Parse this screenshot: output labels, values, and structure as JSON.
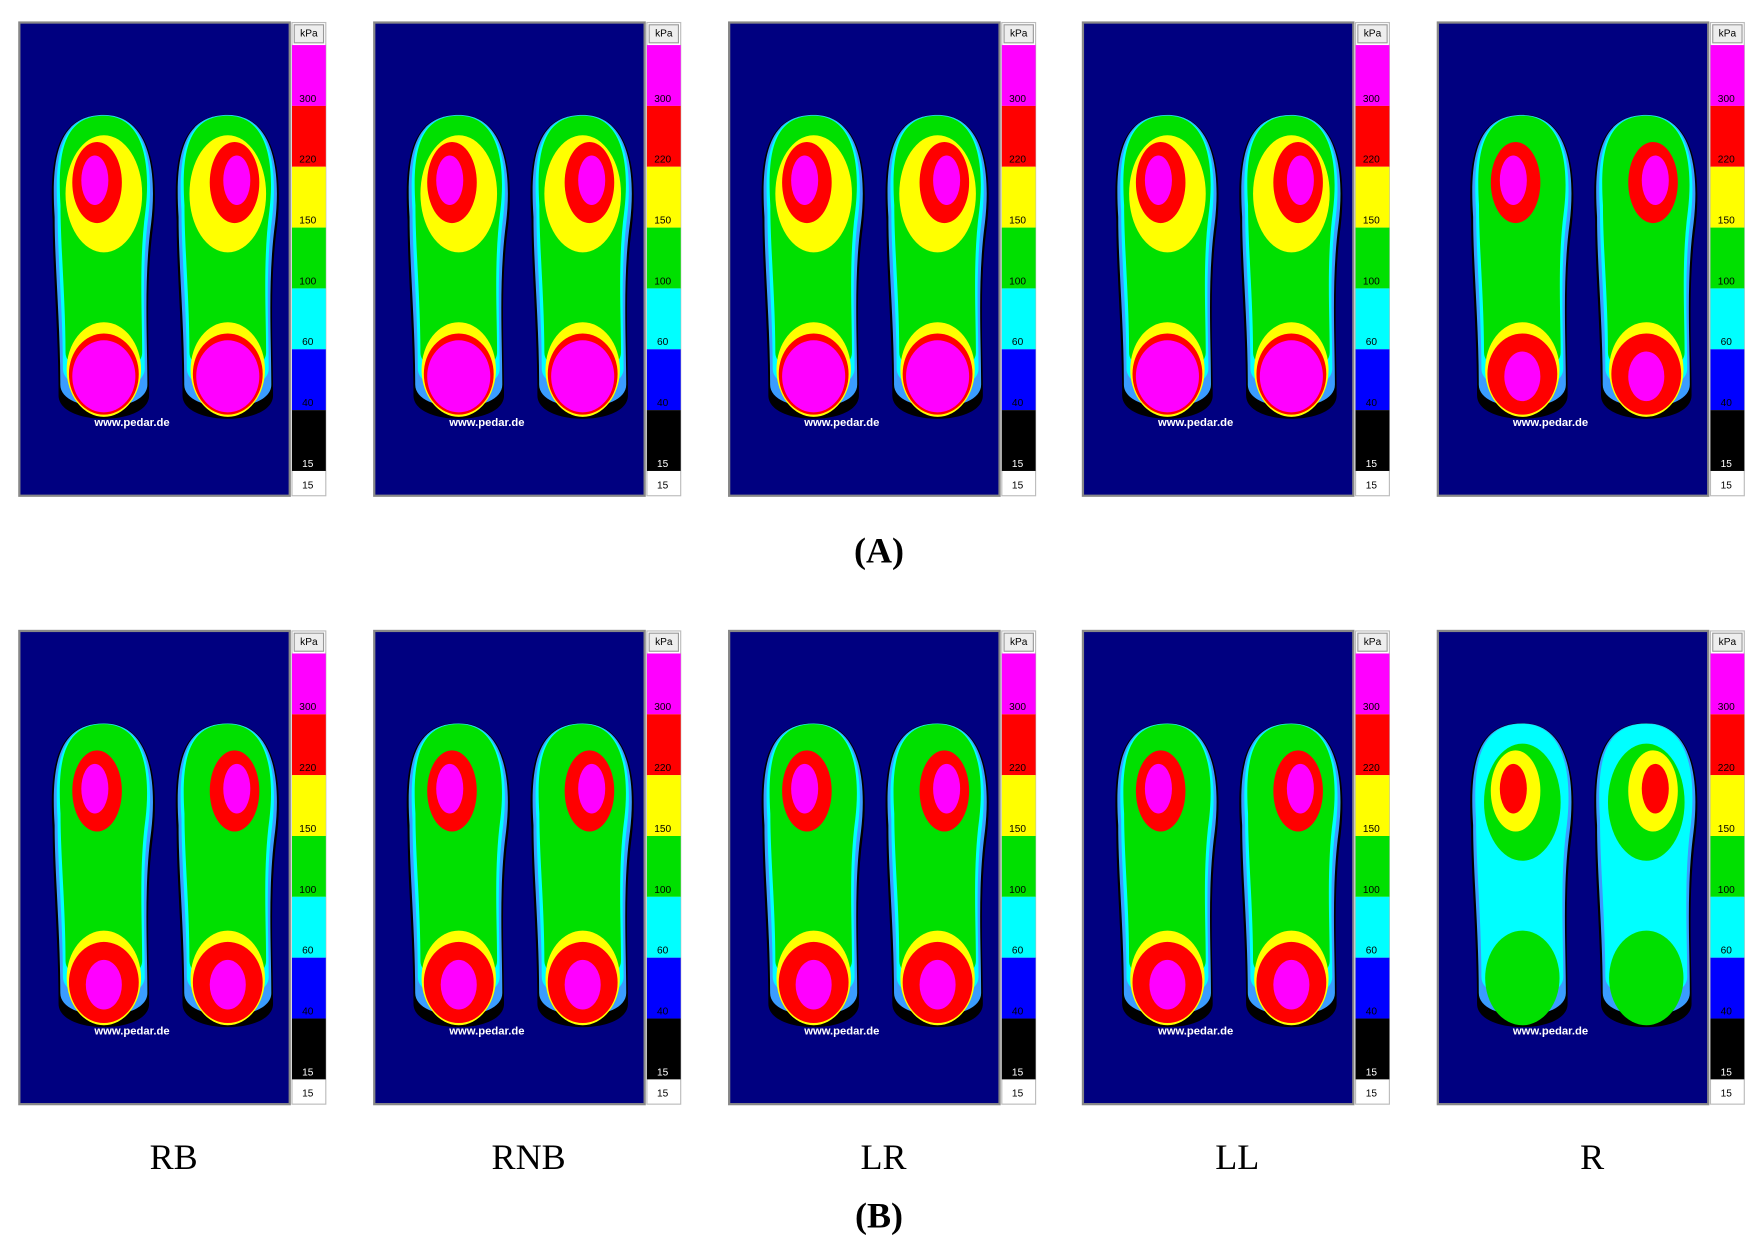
{
  "scale": {
    "unit": "kPa",
    "labels": [
      "300",
      "220",
      "150",
      "100",
      "60",
      "40",
      "15",
      "15"
    ]
  },
  "watermark": "www.pedar.de",
  "panels": [
    {
      "label": "(A)"
    },
    {
      "label": "(B)"
    }
  ],
  "columns": [
    "RB",
    "RNB",
    "LR",
    "LL",
    "R"
  ]
}
